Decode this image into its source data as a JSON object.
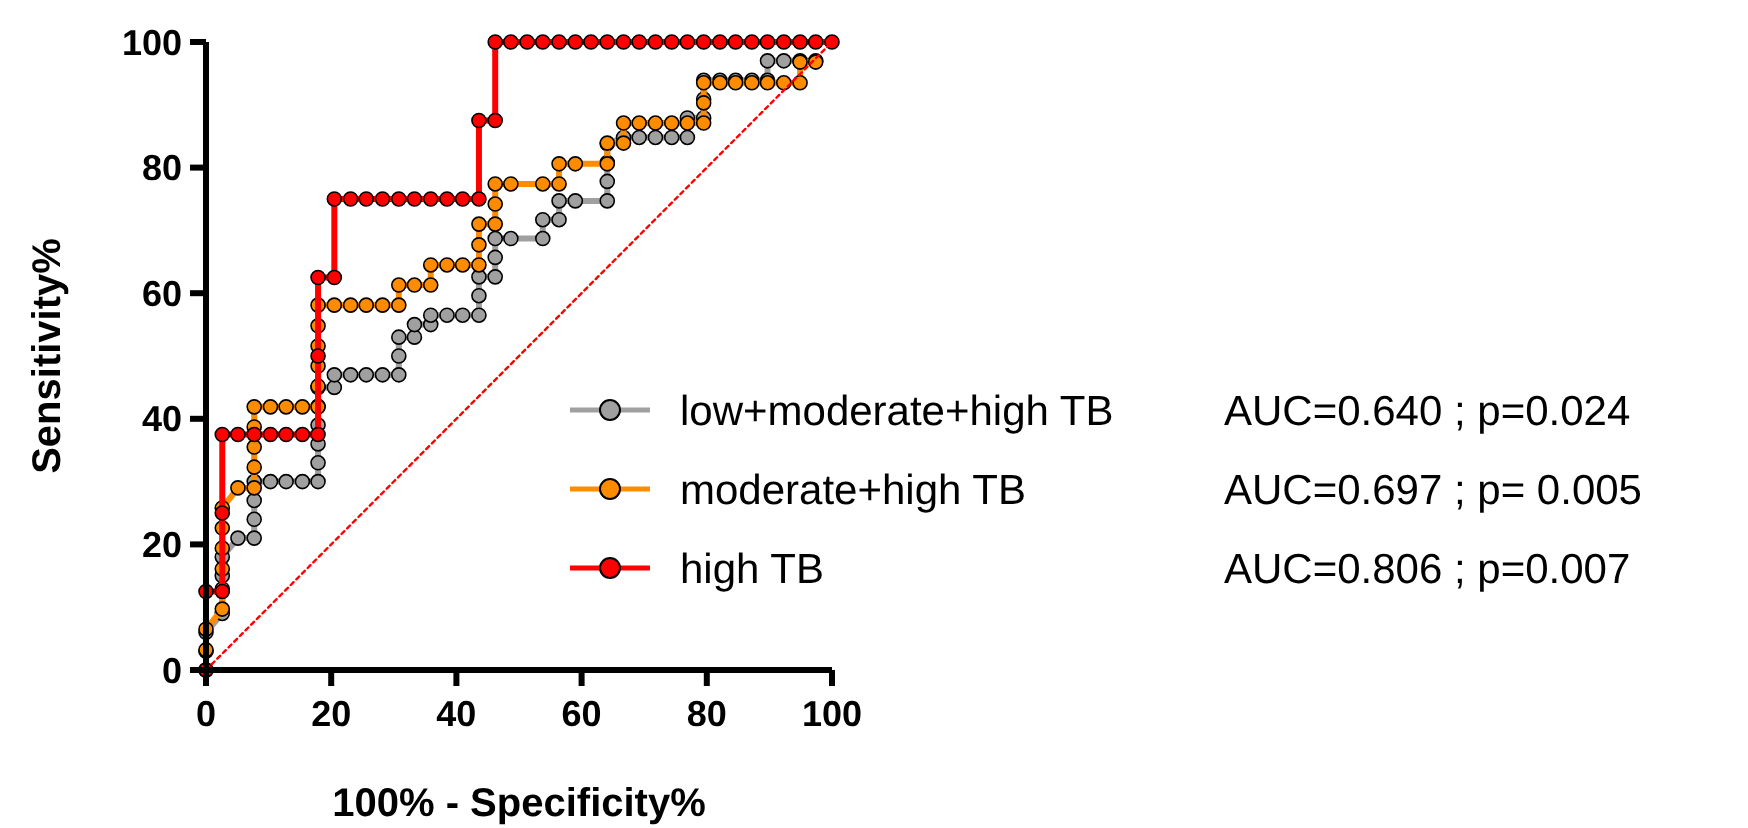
{
  "chart_data": {
    "type": "line",
    "xlabel": "100% - Specificity%",
    "ylabel": "Sensitivity%",
    "xlim": [
      0,
      100
    ],
    "ylim": [
      0,
      100
    ],
    "xticks": [
      0,
      20,
      40,
      60,
      80,
      100
    ],
    "yticks": [
      0,
      20,
      40,
      60,
      80,
      100
    ],
    "grid": false,
    "legend": "right",
    "marker": "circle",
    "annotations": [
      "AUC=0.640 ; p=0.024",
      "AUC=0.697 ; p= 0.005",
      "AUC=0.806 ; p=0.007"
    ],
    "series": [
      {
        "name": "low+moderate+high TB",
        "color": "#a0a0a0",
        "x": [
          0,
          0,
          0,
          2.6,
          2.6,
          2.6,
          5.1,
          7.7,
          7.7,
          7.7,
          7.7,
          10.3,
          12.8,
          15.4,
          17.9,
          17.9,
          17.9,
          17.9,
          17.9,
          17.9,
          20.5,
          20.5,
          23.1,
          25.6,
          28.2,
          30.8,
          30.8,
          30.8,
          33.3,
          33.3,
          35.9,
          35.9,
          38.5,
          41,
          43.6,
          43.6,
          43.6,
          46.2,
          46.2,
          46.2,
          48.7,
          53.8,
          53.8,
          56.4,
          56.4,
          59,
          64.1,
          64.1,
          64.1,
          64.1,
          66.7,
          69.2,
          71.8,
          74.4,
          76.9,
          76.9,
          79.5,
          79.5,
          79.5,
          82.1,
          84.6,
          87.2,
          89.7,
          89.7,
          92.3,
          94.9,
          97.4
        ],
        "values": [
          0,
          3,
          6,
          9,
          15,
          18,
          21,
          21,
          24,
          27,
          30,
          30,
          30,
          30,
          30,
          33,
          36,
          39,
          42,
          45,
          45,
          47,
          47,
          47,
          47,
          47,
          50,
          53,
          53,
          55,
          55,
          56.5,
          56.5,
          56.5,
          56.5,
          59.6,
          62.6,
          62.6,
          65.7,
          68.7,
          68.7,
          68.7,
          71.7,
          71.7,
          74.7,
          74.7,
          74.7,
          77.8,
          80.8,
          83.8,
          84.8,
          84.8,
          84.8,
          84.8,
          84.8,
          87.9,
          87.9,
          90.9,
          93.9,
          93.9,
          93.9,
          93.9,
          93.9,
          97,
          97,
          97,
          97
        ]
      },
      {
        "name": "moderate+high TB",
        "color": "#ff8c00",
        "x": [
          0,
          0,
          0,
          2.6,
          2.6,
          2.6,
          2.6,
          2.6,
          2.6,
          5.1,
          7.7,
          7.7,
          7.7,
          7.7,
          7.7,
          10.3,
          12.8,
          15.4,
          17.9,
          17.9,
          17.9,
          17.9,
          17.9,
          17.9,
          20.5,
          23.1,
          25.6,
          28.2,
          30.8,
          30.8,
          33.3,
          35.9,
          35.9,
          38.5,
          41,
          43.6,
          43.6,
          43.6,
          46.2,
          46.2,
          46.2,
          48.7,
          53.8,
          56.4,
          56.4,
          59,
          64.1,
          64.1,
          66.7,
          66.7,
          69.2,
          71.8,
          74.4,
          76.9,
          79.5,
          79.5,
          79.5,
          82.1,
          84.6,
          87.2,
          89.7,
          92.3,
          94.9,
          94.9,
          97.4
        ],
        "values": [
          0,
          3.2,
          6.5,
          9.7,
          12.9,
          16.1,
          19.4,
          22.6,
          25.8,
          29,
          29,
          32.3,
          35.5,
          38.7,
          41.9,
          41.9,
          41.9,
          41.9,
          41.9,
          45.2,
          48.4,
          51.6,
          54.8,
          58.1,
          58.1,
          58.1,
          58.1,
          58.1,
          58.1,
          61.3,
          61.3,
          61.3,
          64.5,
          64.5,
          64.5,
          64.5,
          67.7,
          71,
          71,
          74.2,
          77.4,
          77.4,
          77.4,
          77.4,
          80.6,
          80.6,
          80.6,
          83.9,
          83.9,
          87.1,
          87.1,
          87.1,
          87.1,
          87.1,
          87.1,
          90.3,
          93.5,
          93.5,
          93.5,
          93.5,
          93.5,
          93.5,
          93.5,
          96.8,
          96.8
        ]
      },
      {
        "name": "high TB",
        "color": "#ff0000",
        "x": [
          0,
          0,
          2.6,
          2.6,
          2.6,
          5.1,
          7.7,
          10.3,
          12.8,
          15.4,
          17.9,
          17.9,
          17.9,
          20.5,
          20.5,
          23.1,
          25.6,
          28.2,
          30.8,
          33.3,
          35.9,
          38.5,
          41,
          43.6,
          43.6,
          46.2,
          46.2,
          48.7,
          51.3,
          53.8,
          56.4,
          59,
          61.5,
          64.1,
          66.7,
          69.2,
          71.8,
          74.4,
          76.9,
          79.5,
          82.1,
          84.6,
          87.2,
          89.7,
          92.3,
          94.9,
          97.4,
          100
        ],
        "values": [
          0,
          12.5,
          12.5,
          25,
          37.5,
          37.5,
          37.5,
          37.5,
          37.5,
          37.5,
          37.5,
          50,
          62.5,
          62.5,
          75,
          75,
          75,
          75,
          75,
          75,
          75,
          75,
          75,
          75,
          87.5,
          87.5,
          100,
          100,
          100,
          100,
          100,
          100,
          100,
          100,
          100,
          100,
          100,
          100,
          100,
          100,
          100,
          100,
          100,
          100,
          100,
          100,
          100,
          100
        ]
      },
      {
        "color": "#ff0000",
        "x": [
          0,
          100
        ],
        "values": [
          0,
          100
        ],
        "line_style": "dotted",
        "marker": "none"
      }
    ]
  }
}
